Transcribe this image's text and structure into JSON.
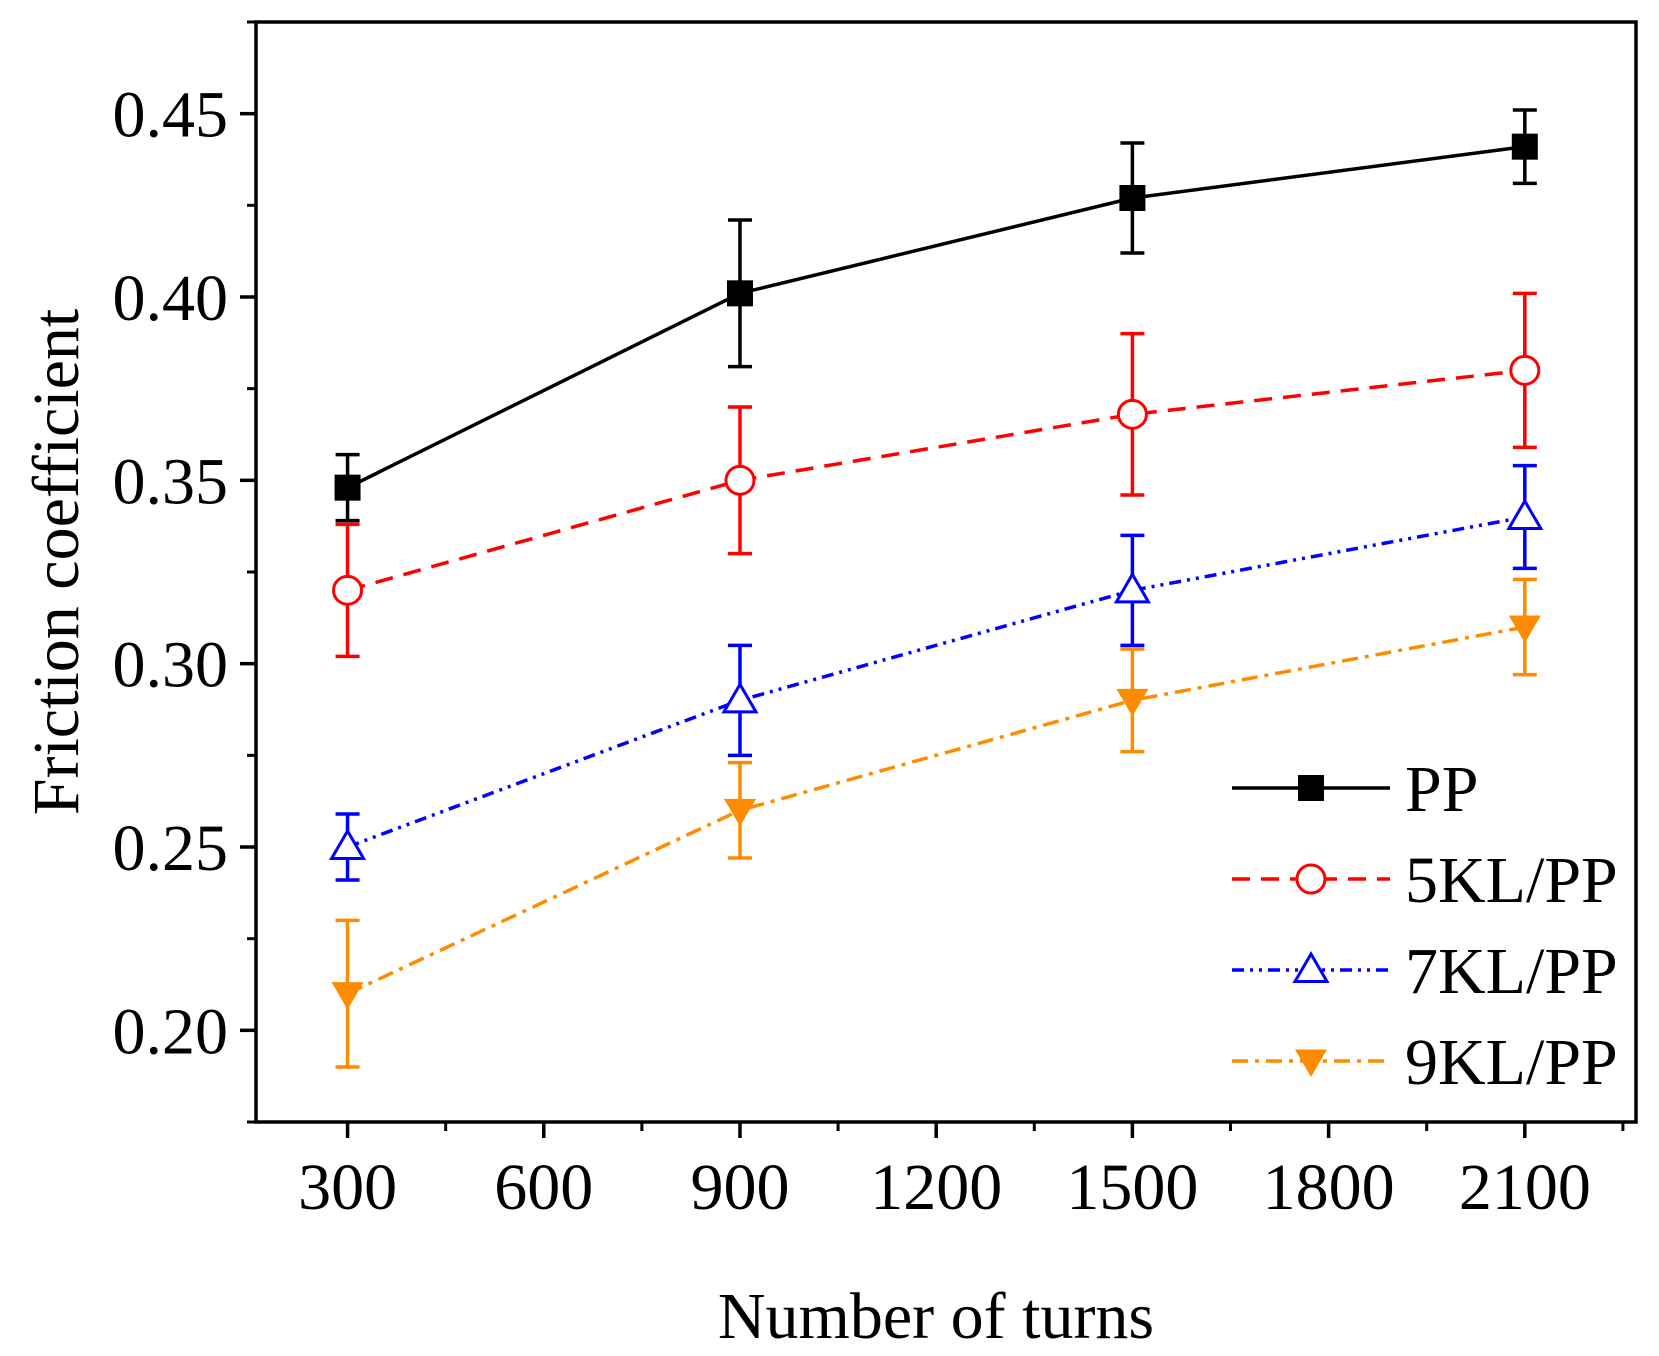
{
  "chart_data": {
    "type": "line",
    "title": "",
    "xlabel": "Number of turns",
    "ylabel": "Friction coefficient",
    "xlim": [
      160,
      2270
    ],
    "ylim": [
      0.175,
      0.475
    ],
    "xticks": [
      300,
      600,
      900,
      1200,
      1500,
      1800,
      2100
    ],
    "xtick_labels": [
      "300",
      "600",
      "900",
      "1200",
      "1500",
      "1800",
      "2100"
    ],
    "yticks": [
      0.2,
      0.25,
      0.3,
      0.35,
      0.4,
      0.45
    ],
    "ytick_labels": [
      "0.20",
      "0.25",
      "0.30",
      "0.35",
      "0.40",
      "0.45"
    ],
    "grid": false,
    "legend_position": "bottom-right",
    "x": [
      300,
      900,
      1500,
      2100
    ],
    "series": [
      {
        "name": "PP",
        "values": [
          0.348,
          0.401,
          0.427,
          0.441
        ],
        "errors": [
          0.009,
          0.02,
          0.015,
          0.01
        ],
        "color": "#000000",
        "marker": "filled-square",
        "line_style": "solid"
      },
      {
        "name": "5KL/PP",
        "values": [
          0.32,
          0.35,
          0.368,
          0.38
        ],
        "errors": [
          0.018,
          0.02,
          0.022,
          0.021
        ],
        "color": "#ff0000",
        "marker": "open-circle",
        "line_style": "dashed"
      },
      {
        "name": "7KL/PP",
        "values": [
          0.25,
          0.29,
          0.32,
          0.34
        ],
        "errors": [
          0.009,
          0.015,
          0.015,
          0.014
        ],
        "color": "#0000ff",
        "marker": "open-triangle-up",
        "line_style": "dash-dot-dot"
      },
      {
        "name": "9KL/PP",
        "values": [
          0.21,
          0.26,
          0.29,
          0.31
        ],
        "errors": [
          0.02,
          0.013,
          0.014,
          0.013
        ],
        "color": "#ff8c00",
        "marker": "filled-triangle-down",
        "line_style": "dash-dot"
      }
    ]
  }
}
